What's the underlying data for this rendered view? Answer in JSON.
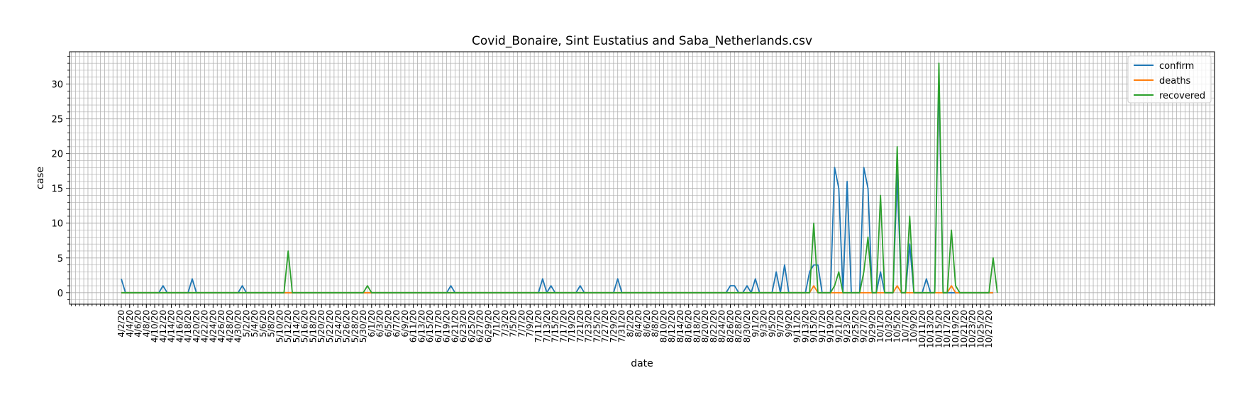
{
  "chart_data": {
    "type": "line",
    "title": "Covid_Bonaire, Sint Eustatius and Saba_Netherlands.csv",
    "xlabel": "date",
    "ylabel": "case",
    "ylim": [
      -1.65,
      34.65
    ],
    "y_ticks": [
      0,
      5,
      10,
      15,
      20,
      25,
      30
    ],
    "grid": true,
    "legend_position": "upper right",
    "x_start": "2020-04-02",
    "x_label_step": 2,
    "x_labels": [
      "4/2/20",
      "4/4/20",
      "4/6/20",
      "4/8/20",
      "4/10/20",
      "4/12/20",
      "4/14/20",
      "4/16/20",
      "4/18/20",
      "4/20/20",
      "4/22/20",
      "4/24/20",
      "4/26/20",
      "4/28/20",
      "4/30/20",
      "5/2/20",
      "5/4/20",
      "5/6/20",
      "5/8/20",
      "5/10/20",
      "5/12/20",
      "5/14/20",
      "5/16/20",
      "5/18/20",
      "5/20/20",
      "5/22/20",
      "5/24/20",
      "5/26/20",
      "5/28/20",
      "5/30/20",
      "6/1/20",
      "6/3/20",
      "6/5/20",
      "6/7/20",
      "6/9/20",
      "6/11/20",
      "6/13/20",
      "6/15/20",
      "6/17/20",
      "6/19/20",
      "6/21/20",
      "6/23/20",
      "6/25/20",
      "6/27/20",
      "6/29/20",
      "7/1/20",
      "7/3/20",
      "7/5/20",
      "7/7/20",
      "7/9/20",
      "7/11/20",
      "7/13/20",
      "7/15/20",
      "7/17/20",
      "7/19/20",
      "7/21/20",
      "7/23/20",
      "7/25/20",
      "7/27/20",
      "7/29/20",
      "7/31/20",
      "8/2/20",
      "8/4/20",
      "8/6/20",
      "8/8/20",
      "8/10/20",
      "8/12/20",
      "8/14/20",
      "8/16/20",
      "8/18/20",
      "8/20/20",
      "8/22/20",
      "8/24/20",
      "8/26/20",
      "8/28/20",
      "8/30/20",
      "9/1/20",
      "9/3/20",
      "9/5/20",
      "9/7/20",
      "9/9/20",
      "9/11/20",
      "9/13/20",
      "9/15/20",
      "9/17/20",
      "9/19/20",
      "9/21/20",
      "9/23/20",
      "9/25/20",
      "9/27/20",
      "9/29/20",
      "10/1/20",
      "10/3/20",
      "10/5/20",
      "10/7/20",
      "10/9/20",
      "10/11/20",
      "10/13/20",
      "10/15/20",
      "10/17/20",
      "10/19/20",
      "10/21/20",
      "10/23/20",
      "10/25/20",
      "10/27/20"
    ],
    "series": [
      {
        "name": "confirm",
        "color": "#1f77b4",
        "points": [
          [
            0,
            2
          ],
          [
            1,
            0
          ],
          [
            9,
            0
          ],
          [
            10,
            1
          ],
          [
            11,
            0
          ],
          [
            16,
            0
          ],
          [
            17,
            2
          ],
          [
            18,
            0
          ],
          [
            28,
            0
          ],
          [
            29,
            1
          ],
          [
            30,
            0
          ],
          [
            78,
            0
          ],
          [
            79,
            1
          ],
          [
            80,
            0
          ],
          [
            100,
            0
          ],
          [
            101,
            2
          ],
          [
            102,
            0
          ],
          [
            103,
            1
          ],
          [
            104,
            0
          ],
          [
            109,
            0
          ],
          [
            110,
            1
          ],
          [
            111,
            0
          ],
          [
            118,
            0
          ],
          [
            119,
            2
          ],
          [
            120,
            0
          ],
          [
            145,
            0
          ],
          [
            146,
            1
          ],
          [
            147,
            1
          ],
          [
            148,
            0
          ],
          [
            149,
            0
          ],
          [
            150,
            1
          ],
          [
            151,
            0
          ],
          [
            152,
            2
          ],
          [
            153,
            0
          ],
          [
            156,
            0
          ],
          [
            157,
            3
          ],
          [
            158,
            0
          ],
          [
            159,
            4
          ],
          [
            160,
            0
          ],
          [
            164,
            0
          ],
          [
            165,
            3
          ],
          [
            166,
            4
          ],
          [
            167,
            4
          ],
          [
            168,
            0
          ],
          [
            170,
            0
          ],
          [
            171,
            18
          ],
          [
            172,
            15
          ],
          [
            173,
            0
          ],
          [
            174,
            16
          ],
          [
            175,
            0
          ],
          [
            177,
            0
          ],
          [
            178,
            18
          ],
          [
            179,
            15
          ],
          [
            180,
            0
          ],
          [
            181,
            0
          ],
          [
            182,
            3
          ],
          [
            183,
            0
          ],
          [
            185,
            0
          ],
          [
            186,
            17
          ],
          [
            187,
            0
          ],
          [
            188,
            0
          ],
          [
            189,
            7
          ],
          [
            190,
            0
          ],
          [
            192,
            0
          ],
          [
            193,
            2
          ],
          [
            194,
            0
          ],
          [
            195,
            0
          ],
          [
            196,
            31
          ],
          [
            197,
            0
          ],
          [
            200,
            0
          ],
          [
            209,
            0
          ]
        ]
      },
      {
        "name": "deaths",
        "color": "#ff7f0e",
        "points": [
          [
            0,
            0
          ],
          [
            165,
            0
          ],
          [
            166,
            1
          ],
          [
            167,
            0
          ],
          [
            185,
            0
          ],
          [
            186,
            1
          ],
          [
            187,
            0
          ],
          [
            198,
            0
          ],
          [
            199,
            1
          ],
          [
            200,
            0
          ],
          [
            209,
            0
          ]
        ]
      },
      {
        "name": "recovered",
        "color": "#2ca02c",
        "points": [
          [
            0,
            0
          ],
          [
            39,
            0
          ],
          [
            40,
            6
          ],
          [
            41,
            0
          ],
          [
            58,
            0
          ],
          [
            59,
            1
          ],
          [
            60,
            0
          ],
          [
            165,
            0
          ],
          [
            166,
            10
          ],
          [
            167,
            0
          ],
          [
            170,
            0
          ],
          [
            171,
            1
          ],
          [
            172,
            3
          ],
          [
            173,
            0
          ],
          [
            177,
            0
          ],
          [
            178,
            3
          ],
          [
            179,
            8
          ],
          [
            180,
            0
          ],
          [
            181,
            0
          ],
          [
            182,
            14
          ],
          [
            183,
            0
          ],
          [
            185,
            0
          ],
          [
            186,
            21
          ],
          [
            187,
            0
          ],
          [
            188,
            0
          ],
          [
            189,
            11
          ],
          [
            190,
            0
          ],
          [
            195,
            0
          ],
          [
            196,
            33
          ],
          [
            197,
            0
          ],
          [
            198,
            0
          ],
          [
            199,
            9
          ],
          [
            200,
            1
          ],
          [
            201,
            0
          ],
          [
            208,
            0
          ],
          [
            209,
            5
          ],
          [
            210,
            0
          ]
        ]
      }
    ]
  }
}
